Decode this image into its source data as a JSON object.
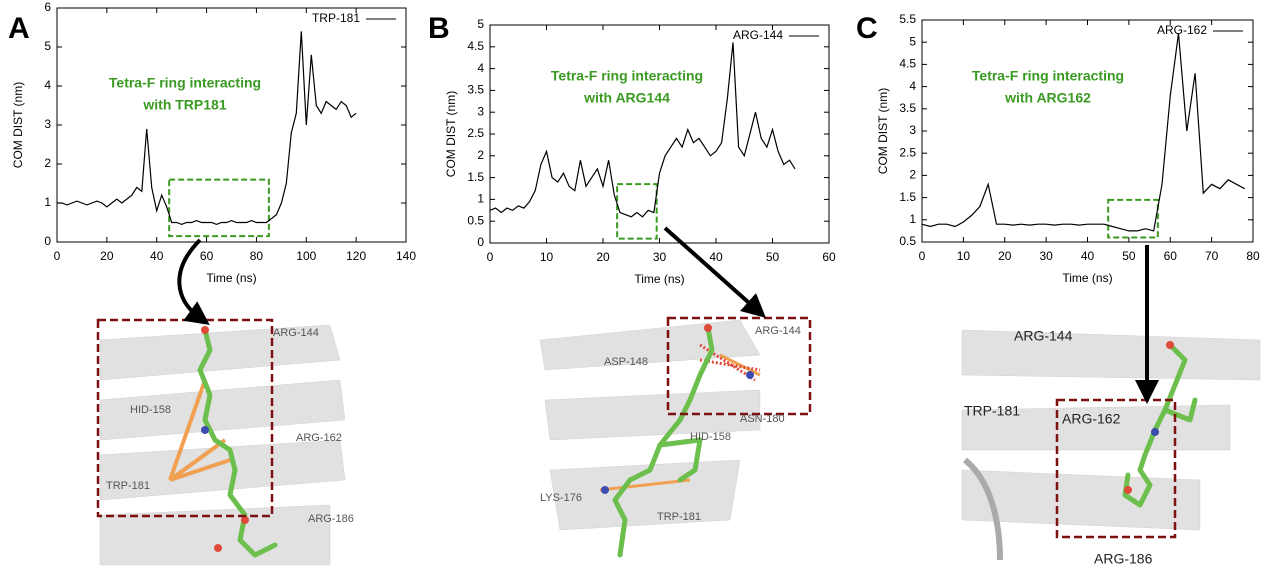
{
  "chart_data": [
    {
      "type": "line",
      "xlabel": "Time (ns)",
      "ylabel": "COM DIST (nm)",
      "annotation": [
        "Tetra-F ring interacting",
        "with TRP181"
      ],
      "annotation_color": "#3a9a22",
      "x": [
        0,
        2,
        4,
        6,
        8,
        10,
        12,
        14,
        16,
        18,
        20,
        22,
        24,
        26,
        28,
        30,
        32,
        34,
        36,
        38,
        40,
        42,
        44,
        46,
        48,
        50,
        52,
        54,
        56,
        58,
        60,
        62,
        64,
        66,
        68,
        70,
        72,
        74,
        76,
        78,
        80,
        82,
        84,
        86,
        88,
        90,
        92,
        94,
        96,
        98,
        100,
        102,
        104,
        106,
        108,
        110,
        112,
        114,
        116,
        118,
        120
      ],
      "series": [
        {
          "name": "TRP-181",
          "color": "#000000",
          "values": [
            1.0,
            1.0,
            0.95,
            1.0,
            1.05,
            1.0,
            0.95,
            1.0,
            1.05,
            1.0,
            0.9,
            1.0,
            1.1,
            1.0,
            1.1,
            1.2,
            1.4,
            1.3,
            2.9,
            1.4,
            0.8,
            1.2,
            0.9,
            0.5,
            0.5,
            0.45,
            0.5,
            0.5,
            0.55,
            0.5,
            0.5,
            0.5,
            0.45,
            0.5,
            0.5,
            0.55,
            0.5,
            0.5,
            0.5,
            0.55,
            0.5,
            0.5,
            0.5,
            0.6,
            0.7,
            1.0,
            1.5,
            2.8,
            3.3,
            5.4,
            3.0,
            4.8,
            3.5,
            3.3,
            3.6,
            3.5,
            3.4,
            3.6,
            3.5,
            3.2,
            3.3
          ]
        }
      ],
      "xlim": [
        0,
        140
      ],
      "ylim": [
        0,
        6
      ],
      "xticks": [
        0,
        20,
        40,
        60,
        80,
        100,
        120,
        140
      ],
      "yticks": [
        0,
        1,
        2,
        3,
        4,
        5,
        6
      ],
      "highlight": {
        "x": [
          45,
          85
        ],
        "y": [
          0.15,
          1.6
        ],
        "color": "#3a9a22"
      },
      "legend": "upper right"
    },
    {
      "type": "line",
      "xlabel": "Time (ns)",
      "ylabel": "COM DIST (nm)",
      "annotation": [
        "Tetra-F ring interacting",
        "with ARG144"
      ],
      "annotation_color": "#3a9a22",
      "x": [
        0,
        1,
        2,
        3,
        4,
        5,
        6,
        7,
        8,
        9,
        10,
        11,
        12,
        13,
        14,
        15,
        16,
        17,
        18,
        19,
        20,
        21,
        22,
        23,
        24,
        25,
        26,
        27,
        28,
        29,
        30,
        31,
        32,
        33,
        34,
        35,
        36,
        37,
        38,
        39,
        40,
        41,
        42,
        43,
        44,
        45,
        46,
        47,
        48,
        49,
        50,
        51,
        52,
        53,
        54
      ],
      "series": [
        {
          "name": "ARG-144",
          "color": "#000000",
          "values": [
            0.75,
            0.8,
            0.7,
            0.8,
            0.75,
            0.85,
            0.8,
            0.95,
            1.2,
            1.8,
            2.1,
            1.5,
            1.4,
            1.6,
            1.3,
            1.2,
            1.9,
            1.3,
            1.5,
            1.7,
            1.3,
            1.9,
            1.1,
            0.7,
            0.65,
            0.6,
            0.7,
            0.6,
            0.75,
            0.7,
            1.6,
            2.0,
            2.2,
            2.4,
            2.2,
            2.6,
            2.3,
            2.4,
            2.2,
            2.0,
            2.1,
            2.3,
            3.3,
            4.6,
            2.2,
            2.0,
            2.5,
            3.0,
            2.4,
            2.2,
            2.6,
            2.1,
            1.8,
            1.9,
            1.7
          ]
        }
      ],
      "xlim": [
        0,
        60
      ],
      "ylim": [
        0,
        5
      ],
      "xticks": [
        0,
        10,
        20,
        30,
        40,
        50,
        60
      ],
      "yticks": [
        0,
        0.5,
        1,
        1.5,
        2,
        2.5,
        3,
        3.5,
        4,
        4.5,
        5
      ],
      "highlight": {
        "x": [
          22.5,
          29.5
        ],
        "y": [
          0.1,
          1.35
        ],
        "color": "#3a9a22"
      },
      "legend": "upper right"
    },
    {
      "type": "line",
      "xlabel": "Time (ns)",
      "ylabel": "COM DIST (nm)",
      "annotation": [
        "Tetra-F ring interacting",
        "with ARG162"
      ],
      "annotation_color": "#3a9a22",
      "x": [
        0,
        2,
        4,
        6,
        8,
        10,
        12,
        14,
        16,
        18,
        20,
        22,
        24,
        26,
        28,
        30,
        32,
        34,
        36,
        38,
        40,
        42,
        44,
        46,
        48,
        50,
        52,
        54,
        56,
        58,
        60,
        62,
        64,
        66,
        68,
        70,
        72,
        74,
        76,
        78
      ],
      "series": [
        {
          "name": "ARG-162",
          "color": "#000000",
          "values": [
            0.9,
            0.85,
            0.9,
            0.9,
            0.85,
            0.95,
            1.1,
            1.3,
            1.8,
            0.9,
            0.9,
            0.88,
            0.9,
            0.88,
            0.9,
            0.9,
            0.88,
            0.9,
            0.9,
            0.88,
            0.9,
            0.9,
            0.9,
            0.85,
            0.8,
            0.75,
            0.75,
            0.8,
            0.75,
            1.8,
            3.8,
            5.2,
            3.0,
            4.3,
            1.6,
            1.8,
            1.7,
            1.9,
            1.8,
            1.7
          ]
        }
      ],
      "xlim": [
        0,
        80
      ],
      "ylim": [
        0.5,
        5.5
      ],
      "xticks": [
        0,
        10,
        20,
        30,
        40,
        50,
        60,
        70,
        80
      ],
      "yticks": [
        0.5,
        1,
        1.5,
        2,
        2.5,
        3,
        3.5,
        4,
        4.5,
        5,
        5.5
      ],
      "highlight": {
        "x": [
          45,
          57
        ],
        "y": [
          0.6,
          1.45
        ],
        "color": "#3a9a22"
      },
      "legend": "upper right"
    }
  ],
  "panels": [
    {
      "letter": "A",
      "residues": [
        "ARG-144",
        "HID-158",
        "ARG-162",
        "TRP-181",
        "ARG-186"
      ]
    },
    {
      "letter": "B",
      "residues": [
        "ARG-144",
        "ASP-148",
        "HID-158",
        "ASN-180",
        "LYS-176",
        "TRP-181"
      ]
    },
    {
      "letter": "C",
      "residues": [
        "ARG-144",
        "TRP-181",
        "ARG-162",
        "ARG-186"
      ]
    }
  ]
}
